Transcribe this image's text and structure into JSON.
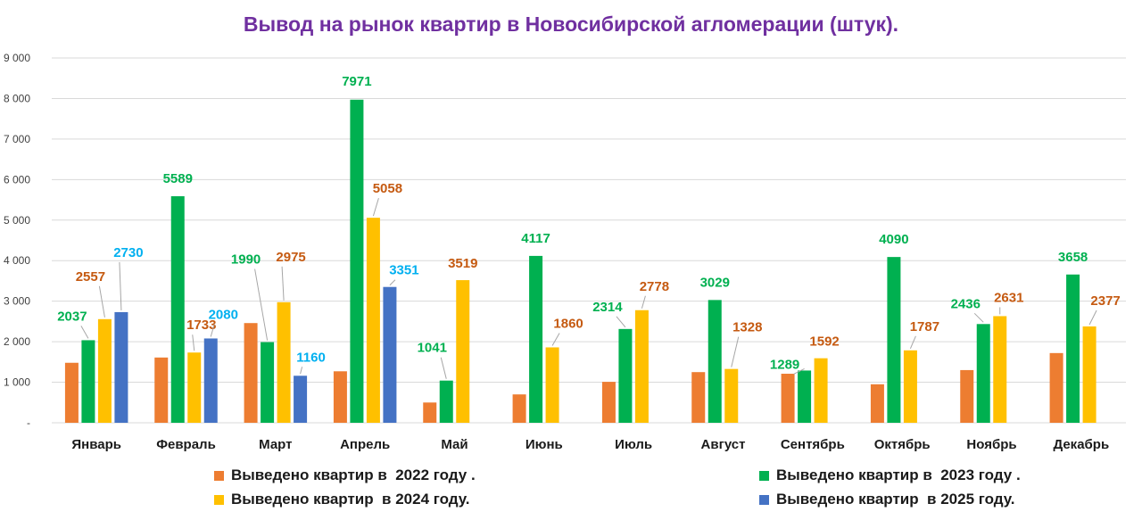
{
  "chart_data": {
    "type": "bar",
    "title": "Вывод на рынок квартир в Новосибирской агломерации (штук).",
    "categories": [
      "Январь",
      "Февраль",
      "Март",
      "Апрель",
      "Май",
      "Июнь",
      "Июль",
      "Август",
      "Сентябрь",
      "Октябрь",
      "Ноябрь",
      "Декабрь"
    ],
    "ylim": [
      0,
      9000
    ],
    "yticks": [
      "-",
      "1 000",
      "2 000",
      "3 000",
      "4 000",
      "5 000",
      "6 000",
      "7 000",
      "8 000",
      "9 000"
    ],
    "grid": true,
    "legend_position": "bottom",
    "series": [
      {
        "name": "Выведено квартир в  2022 году .",
        "color": "#ed7d31",
        "values": [
          1480,
          1610,
          2460,
          1270,
          500,
          700,
          1010,
          1250,
          1210,
          950,
          1300,
          1720
        ],
        "labels": [
          null,
          null,
          null,
          null,
          null,
          null,
          null,
          null,
          null,
          null,
          null,
          null
        ],
        "label_color": ""
      },
      {
        "name": "Выведено квартир в  2023 году .",
        "color": "#00b050",
        "values": [
          2037,
          5589,
          1990,
          7971,
          1041,
          4117,
          2314,
          3029,
          1289,
          4090,
          2436,
          3658
        ],
        "labels": [
          "2037",
          "5589",
          "1990",
          "7971",
          "1041",
          "4117",
          "2314",
          "3029",
          "1289",
          "4090",
          "2436",
          "3658"
        ],
        "label_color": "#00b050"
      },
      {
        "name": "Выведено квартир  в 2024 году.",
        "color": "#ffc000",
        "values": [
          2557,
          1733,
          2975,
          5058,
          3519,
          1860,
          2778,
          1328,
          1592,
          1787,
          2631,
          2377
        ],
        "labels": [
          "2557",
          "1733",
          "2975",
          "5058",
          "3519",
          "1860",
          "2778",
          "1328",
          "1592",
          "1787",
          "2631",
          "2377"
        ],
        "label_color": "#c55a11"
      },
      {
        "name": "Выведено квартир  в 2025 году.",
        "color": "#4472c4",
        "values": [
          2730,
          2080,
          1160,
          3351,
          null,
          null,
          null,
          null,
          null,
          null,
          null,
          null
        ],
        "labels": [
          "2730",
          "2080",
          "1160",
          "3351",
          null,
          null,
          null,
          null,
          null,
          null,
          null,
          null
        ],
        "label_color": "#00b0f0"
      }
    ]
  }
}
